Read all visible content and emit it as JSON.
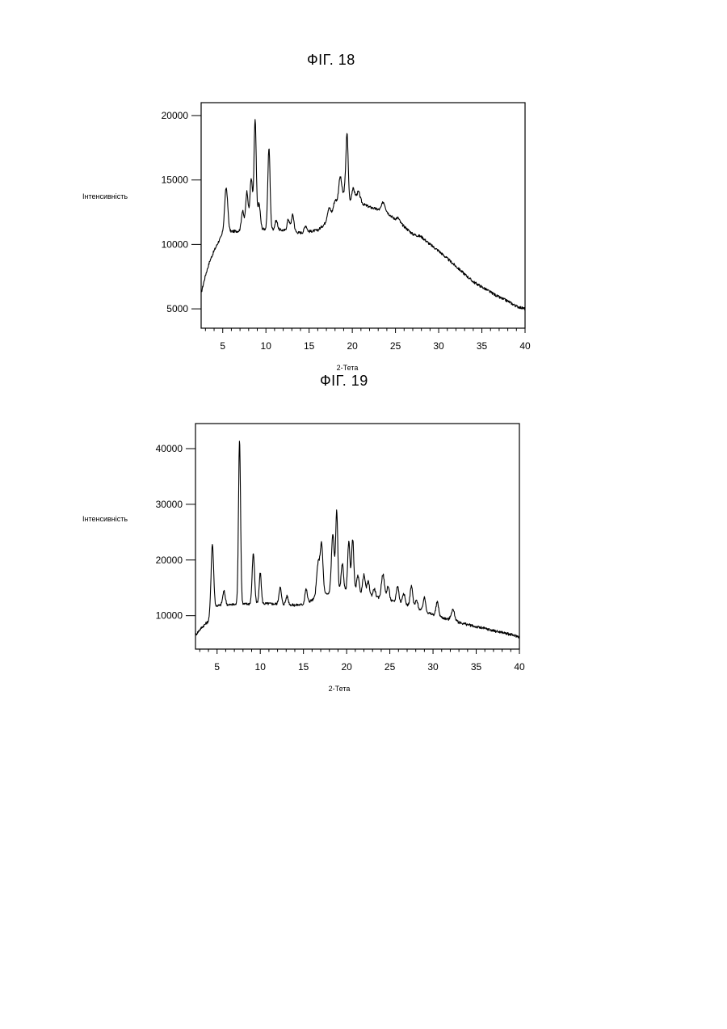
{
  "chart_data": [
    {
      "figure_label": "ФІГ. 18",
      "type": "line",
      "xlabel": "2-Тета",
      "ylabel": "Інтенсивність",
      "xlim": [
        2.5,
        40
      ],
      "ylim": [
        3500,
        21000
      ],
      "xticks": [
        5,
        10,
        15,
        20,
        25,
        30,
        35,
        40
      ],
      "yticks": [
        5000,
        10000,
        15000,
        20000
      ],
      "grid": false,
      "baseline": [
        [
          2.5,
          6200
        ],
        [
          3,
          7600
        ],
        [
          3.5,
          8700
        ],
        [
          4,
          9500
        ],
        [
          4.5,
          10200
        ],
        [
          5,
          10800
        ],
        [
          6,
          11000
        ],
        [
          8,
          11100
        ],
        [
          10,
          11200
        ],
        [
          12,
          11100
        ],
        [
          14,
          10900
        ],
        [
          16,
          11100
        ],
        [
          17,
          11700
        ],
        [
          18,
          12400
        ],
        [
          19,
          12900
        ],
        [
          20,
          13100
        ],
        [
          21,
          13200
        ],
        [
          22,
          12900
        ],
        [
          23,
          12700
        ],
        [
          24,
          12500
        ],
        [
          25,
          11900
        ],
        [
          26,
          11400
        ],
        [
          27,
          10800
        ],
        [
          28,
          10600
        ],
        [
          29,
          10000
        ],
        [
          30,
          9500
        ],
        [
          31,
          8900
        ],
        [
          32,
          8300
        ],
        [
          33,
          7700
        ],
        [
          34,
          7100
        ],
        [
          35,
          6700
        ],
        [
          36,
          6300
        ],
        [
          37,
          5900
        ],
        [
          38,
          5600
        ],
        [
          39,
          5200
        ],
        [
          40,
          5000
        ]
      ],
      "peaks": [
        [
          5.4,
          3500,
          0.18
        ],
        [
          7.3,
          1500,
          0.15
        ],
        [
          7.8,
          3000,
          0.15
        ],
        [
          8.3,
          4000,
          0.15
        ],
        [
          8.75,
          8500,
          0.13
        ],
        [
          9.2,
          2000,
          0.15
        ],
        [
          10.35,
          6300,
          0.13
        ],
        [
          11.2,
          700,
          0.15
        ],
        [
          12.6,
          900,
          0.15
        ],
        [
          13.1,
          1300,
          0.15
        ],
        [
          14.6,
          500,
          0.15
        ],
        [
          17.3,
          900,
          0.2
        ],
        [
          18.0,
          1000,
          0.2
        ],
        [
          18.6,
          2500,
          0.2
        ],
        [
          19.2,
          1300,
          0.2
        ],
        [
          19.4,
          4800,
          0.13
        ],
        [
          20.1,
          1200,
          0.2
        ],
        [
          20.7,
          900,
          0.2
        ],
        [
          23.6,
          700,
          0.2
        ],
        [
          25.3,
          300,
          0.2
        ]
      ]
    },
    {
      "figure_label": "ФІГ. 19",
      "type": "line",
      "xlabel": "2-Тета",
      "ylabel": "Інтенсивність",
      "xlim": [
        2.5,
        40
      ],
      "ylim": [
        4000,
        44500
      ],
      "xticks": [
        5,
        10,
        15,
        20,
        25,
        30,
        35,
        40
      ],
      "yticks": [
        10000,
        20000,
        30000,
        40000
      ],
      "grid": false,
      "baseline": [
        [
          2.5,
          6500
        ],
        [
          3,
          7500
        ],
        [
          3.5,
          8300
        ],
        [
          4,
          9000
        ],
        [
          4.5,
          11000
        ],
        [
          5,
          11800
        ],
        [
          7,
          12000
        ],
        [
          10,
          12200
        ],
        [
          12,
          12100
        ],
        [
          14,
          11900
        ],
        [
          15,
          12000
        ],
        [
          16,
          12800
        ],
        [
          17,
          13500
        ],
        [
          18,
          14000
        ],
        [
          19,
          14300
        ],
        [
          20,
          14500
        ],
        [
          21,
          14200
        ],
        [
          22,
          13800
        ],
        [
          23,
          13400
        ],
        [
          24,
          13000
        ],
        [
          25,
          12700
        ],
        [
          26,
          12300
        ],
        [
          27,
          11900
        ],
        [
          28,
          11300
        ],
        [
          29,
          10700
        ],
        [
          30,
          10200
        ],
        [
          31,
          9700
        ],
        [
          32,
          9200
        ],
        [
          33,
          8800
        ],
        [
          34,
          8400
        ],
        [
          35,
          8000
        ],
        [
          36,
          7700
        ],
        [
          37,
          7300
        ],
        [
          38,
          7000
        ],
        [
          39,
          6600
        ],
        [
          40,
          6200
        ]
      ],
      "peaks": [
        [
          4.45,
          12000,
          0.15
        ],
        [
          5.8,
          2500,
          0.15
        ],
        [
          7.6,
          29500,
          0.12
        ],
        [
          9.2,
          9000,
          0.14
        ],
        [
          10.0,
          5500,
          0.12
        ],
        [
          12.3,
          3000,
          0.14
        ],
        [
          13.1,
          1500,
          0.14
        ],
        [
          15.3,
          2500,
          0.14
        ],
        [
          16.7,
          6000,
          0.18
        ],
        [
          17.1,
          9000,
          0.16
        ],
        [
          18.4,
          10500,
          0.16
        ],
        [
          18.85,
          14500,
          0.12
        ],
        [
          19.5,
          5000,
          0.14
        ],
        [
          20.25,
          9000,
          0.13
        ],
        [
          20.7,
          9500,
          0.13
        ],
        [
          21.3,
          3000,
          0.15
        ],
        [
          22.0,
          3500,
          0.15
        ],
        [
          22.5,
          2500,
          0.15
        ],
        [
          23.2,
          1500,
          0.15
        ],
        [
          24.2,
          4500,
          0.18
        ],
        [
          24.8,
          2500,
          0.15
        ],
        [
          25.9,
          3000,
          0.15
        ],
        [
          26.6,
          2000,
          0.15
        ],
        [
          27.5,
          3700,
          0.15
        ],
        [
          28.1,
          1500,
          0.15
        ],
        [
          29.0,
          2500,
          0.15
        ],
        [
          30.5,
          2500,
          0.15
        ],
        [
          32.3,
          2000,
          0.2
        ]
      ]
    }
  ]
}
